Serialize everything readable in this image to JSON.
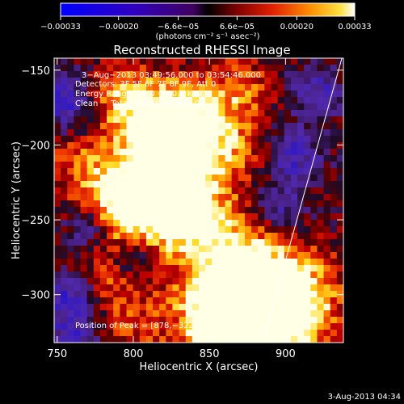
{
  "chart_data": {
    "type": "heatmap",
    "title": "Reconstructed RHESSI Image",
    "xlabel": "Heliocentric X (arcsec)",
    "ylabel": "Heliocentric Y (arcsec)",
    "xlim": [
      748,
      938
    ],
    "ylim": [
      -332,
      -142
    ],
    "x_ticks": [
      750,
      800,
      850,
      900
    ],
    "x_tick_labels": [
      "750",
      "800",
      "850",
      "900"
    ],
    "y_ticks": [
      -150,
      -200,
      -250,
      -300
    ],
    "y_tick_labels": [
      "−150",
      "−200",
      "−250",
      "−300"
    ],
    "colorbar": {
      "range": [
        -0.00033,
        0.00033
      ],
      "tick_values": [
        -0.00033,
        -0.0002,
        -6.6e-05,
        6.6e-05,
        0.0002,
        0.00033
      ],
      "tick_labels": [
        "−0.00033",
        "−0.00020",
        "−6.6e−05",
        "6.6e−05",
        "0.00020",
        "0.00033"
      ],
      "unit_label": "(photons cm⁻² s⁻¹ asec⁻²)",
      "colormap": "blue-purple-red-yellow-white"
    },
    "annotations": {
      "time_range": "3−Aug−2013 03:49:56.000 to 03:54:46.000",
      "detectors": "Detectors: 3F 5F 6F 7F 8F 9F, Att 0",
      "energy": "Energy Range: 25.0 − 50.0 keV",
      "clean": "Clean     Total counts: 1.76E+04",
      "peak": "Position of Peak = [878,−322]"
    },
    "limb_line": {
      "from": [
        885,
        -332
      ],
      "to": [
        937,
        -142
      ]
    },
    "grid": false
  },
  "footer": {
    "timestamp": "3-Aug-2013 04:34"
  },
  "colors": {
    "background": "#000000",
    "text": "#ffffff",
    "cmap_low": "#0000ff",
    "cmap_mid_low": "#400080",
    "cmap_mid": "#c00000",
    "cmap_high": "#ffd000",
    "cmap_max": "#ffffff"
  }
}
